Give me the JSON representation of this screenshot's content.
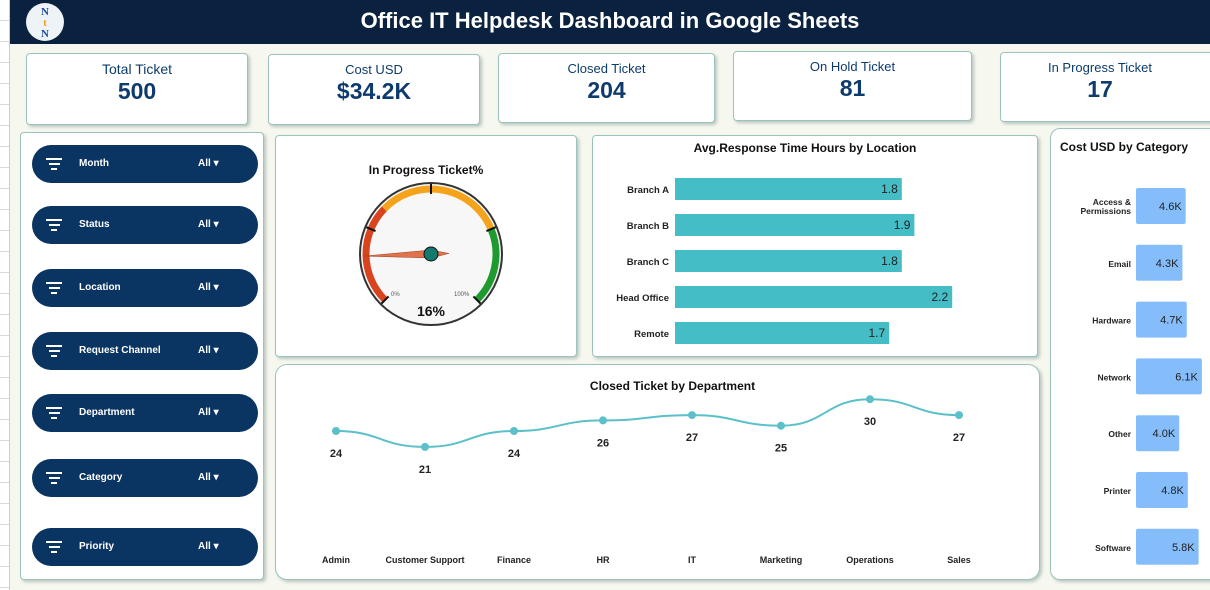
{
  "header": {
    "title": "Office IT Helpdesk Dashboard in Google Sheets",
    "logo_text": "NtN"
  },
  "kpis": [
    {
      "label": "Total Ticket",
      "value": "500"
    },
    {
      "label": "Cost USD",
      "value": "$34.2K"
    },
    {
      "label": "Closed Ticket",
      "value": "204"
    },
    {
      "label": "On Hold Ticket",
      "value": "81"
    },
    {
      "label": "In Progress Ticket",
      "value": "17"
    }
  ],
  "filters": [
    {
      "label": "Month",
      "value": "All"
    },
    {
      "label": "Status",
      "value": "All"
    },
    {
      "label": "Location",
      "value": "All"
    },
    {
      "label": "Request Channel",
      "value": "All"
    },
    {
      "label": "Department",
      "value": "All"
    },
    {
      "label": "Category",
      "value": "All"
    },
    {
      "label": "Priority",
      "value": "All"
    }
  ],
  "chart_data": [
    {
      "type": "gauge",
      "title": "In Progress Ticket%",
      "value": 16,
      "value_label": "16%",
      "min_label": "0%",
      "max_label": "100%",
      "bands": [
        {
          "color": "#d9441f"
        },
        {
          "color": "#f5a31a"
        },
        {
          "color": "#1f9a2e"
        }
      ]
    },
    {
      "type": "bar",
      "orientation": "horizontal",
      "title": "Avg.Response Time Hours by Location",
      "categories": [
        "Branch A",
        "Branch B",
        "Branch C",
        "Head Office",
        "Remote"
      ],
      "values": [
        1.8,
        1.9,
        1.8,
        2.2,
        1.7
      ],
      "color": "#45bdc6"
    },
    {
      "type": "line",
      "title": "Closed Ticket by Department",
      "categories": [
        "Admin",
        "Customer Support",
        "Finance",
        "HR",
        "IT",
        "Marketing",
        "Operations",
        "Sales"
      ],
      "values": [
        24,
        21,
        24,
        26,
        27,
        25,
        30,
        27
      ],
      "color": "#5bc0c8"
    },
    {
      "type": "bar",
      "orientation": "horizontal",
      "title": "Cost USD by Category",
      "categories": [
        "Access & Permissions",
        "Email",
        "Hardware",
        "Network",
        "Other",
        "Printer",
        "Software"
      ],
      "values": [
        4.6,
        4.3,
        4.7,
        6.1,
        4.0,
        4.8,
        5.8
      ],
      "value_labels": [
        "4.6K",
        "4.3K",
        "4.7K",
        "6.1K",
        "4.0K",
        "4.8K",
        "5.8K"
      ],
      "color": "#85bdfb"
    }
  ]
}
